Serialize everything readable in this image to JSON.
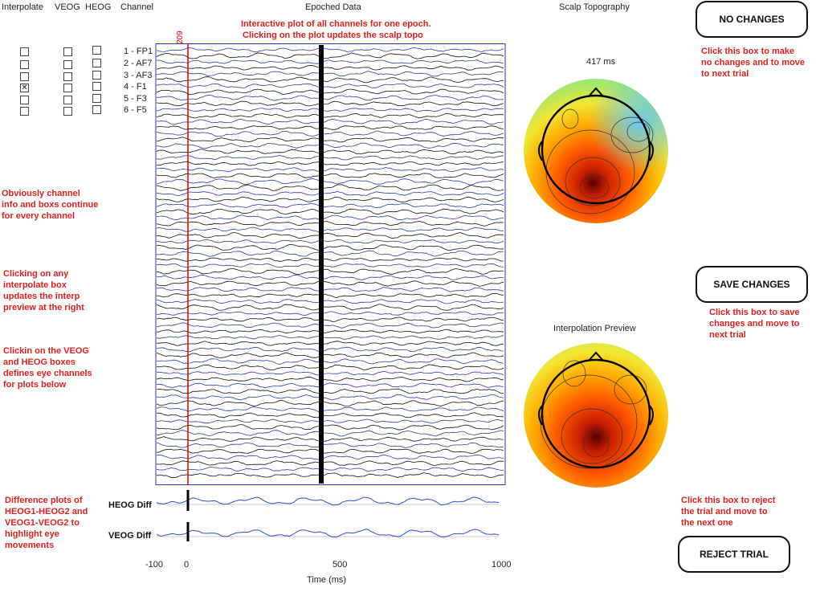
{
  "columns": {
    "interpolate": "Interpolate",
    "veog": "VEOG",
    "heog": "HEOG",
    "channel": "Channel"
  },
  "channels": [
    {
      "label": "1 - FP1",
      "interpolate": false,
      "veog": false,
      "heog": false
    },
    {
      "label": "2 - AF7",
      "interpolate": false,
      "veog": false,
      "heog": false
    },
    {
      "label": "3 - AF3",
      "interpolate": false,
      "veog": false,
      "heog": false
    },
    {
      "label": "4 - F1",
      "interpolate": true,
      "veog": false,
      "heog": false
    },
    {
      "label": "5 - F3",
      "interpolate": false,
      "veog": false,
      "heog": false
    },
    {
      "label": "6 - F5",
      "interpolate": false,
      "veog": false,
      "heog": false
    }
  ],
  "epoch_plot": {
    "title": "Epoched Data",
    "cursor_label": "209",
    "annotation_line1": "Interactive plot of all channels for one epoch.",
    "annotation_line2": "Clicking on the plot updates the scalp topo",
    "line_colors": [
      "#2b3aa8",
      "#111111"
    ]
  },
  "notes": {
    "channel_info": [
      "Obviously channel",
      "info and boxs continue",
      "for every channel"
    ],
    "interpolate_box": [
      "Clicking on any",
      "interpolate box",
      "updates the interp",
      "preview at the right"
    ],
    "eye_boxes": [
      "Clickin on the VEOG",
      "and HEOG boxes",
      "defines eye channels",
      "for plots below"
    ],
    "difference_plots": [
      "Difference plots of",
      "HEOG1-HEOG2 and",
      "VEOG1-VEOG2 to",
      "highlight eye",
      "movements"
    ]
  },
  "eye_plots": {
    "heog_label": "HEOG Diff",
    "veog_label": "VEOG Diff"
  },
  "time_axis": {
    "label": "Time (ms)",
    "ticks": [
      "-100",
      "0",
      "500",
      "1000"
    ]
  },
  "scalp": {
    "title": "Scalp Topography",
    "time_label": "417 ms",
    "interp_title": "Interpolation Preview"
  },
  "buttons": {
    "no_changes": "NO CHANGES",
    "save_changes": "SAVE CHANGES",
    "reject_trial": "REJECT TRIAL"
  },
  "button_notes": {
    "no_changes": [
      "Click this box to make",
      "no changes and to move",
      "to next trial"
    ],
    "save_changes": [
      "Click this box to save",
      "changes and move to",
      "next trial"
    ],
    "reject_trial": [
      "Click this box to reject",
      "the trial and move to",
      "the next one"
    ]
  }
}
